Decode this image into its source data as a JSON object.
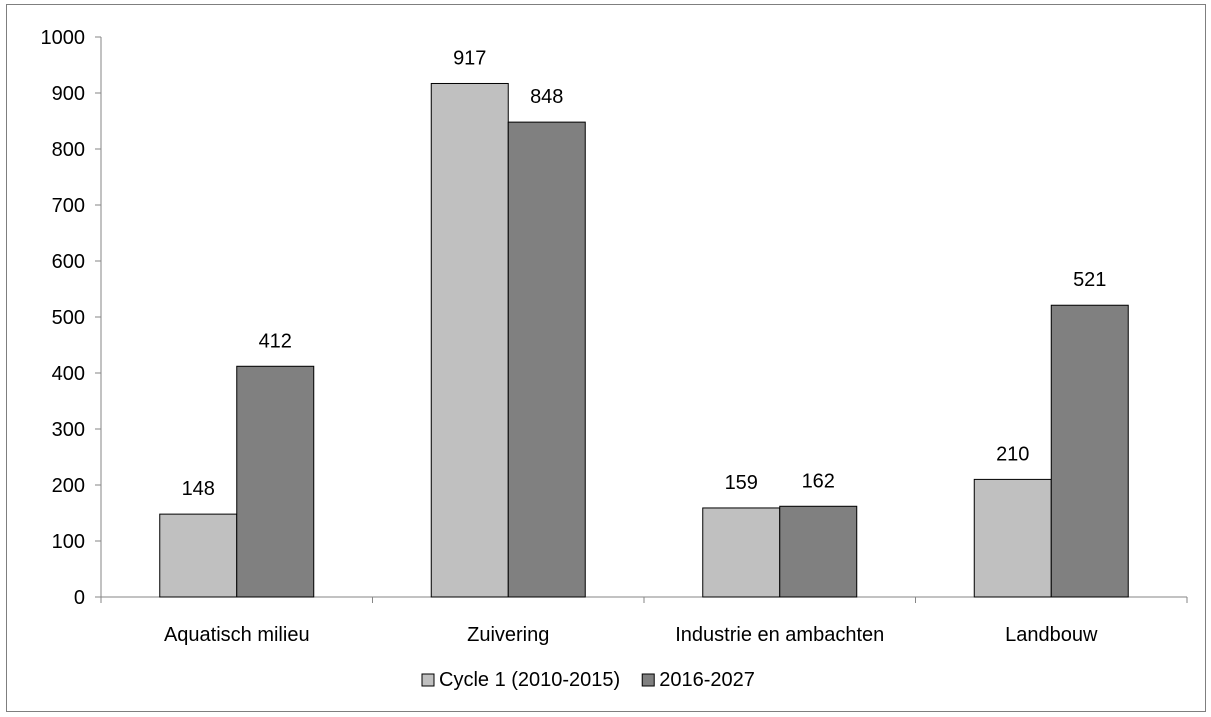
{
  "chart_data": {
    "type": "bar",
    "title": "",
    "xlabel": "",
    "ylabel": "",
    "categories": [
      "Aquatisch milieu",
      "Zuivering",
      "Industrie en ambachten",
      "Landbouw"
    ],
    "series": [
      {
        "name": "Cycle 1 (2010-2015)",
        "values": [
          148,
          917,
          159,
          210
        ],
        "color": "#c0c0c0"
      },
      {
        "name": "2016-2027",
        "values": [
          412,
          848,
          162,
          521
        ],
        "color": "#808080"
      }
    ],
    "ylim": [
      0,
      1000
    ],
    "yticks": [
      "0",
      "100",
      "200",
      "300",
      "400",
      "500",
      "600",
      "700",
      "800",
      "900",
      "1000"
    ],
    "grid": false,
    "legend": "bottom",
    "data_labels": true
  }
}
